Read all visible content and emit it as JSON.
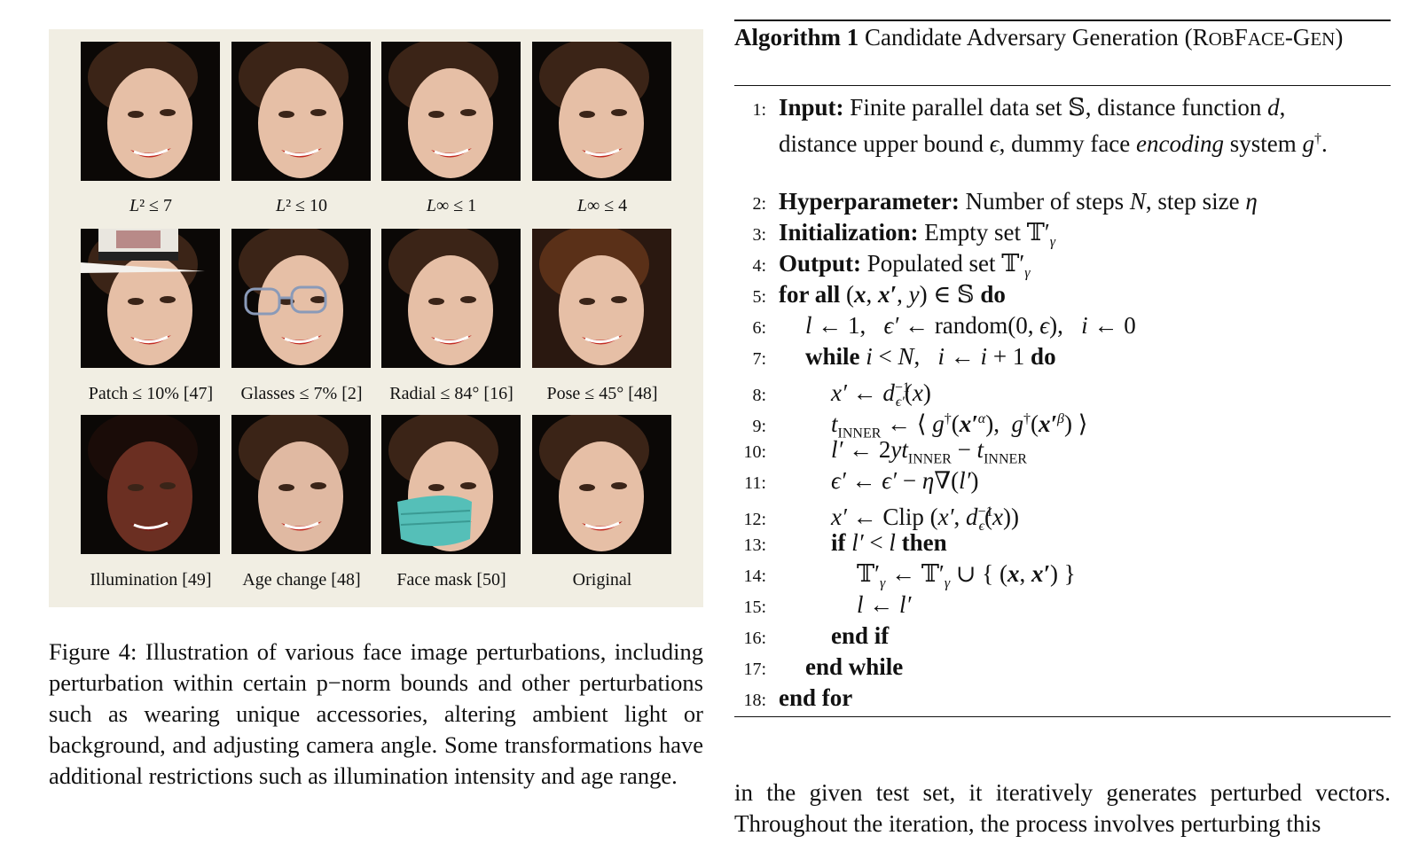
{
  "figure": {
    "cells": [
      {
        "label": "L² ≤ 7",
        "variant": "base"
      },
      {
        "label": "L² ≤ 10",
        "variant": "base"
      },
      {
        "label": "L∞ ≤ 1",
        "variant": "base"
      },
      {
        "label": "L∞ ≤ 4",
        "variant": "base"
      },
      {
        "label": "Patch ≤ 10% [47]",
        "variant": "hat"
      },
      {
        "label": "Glasses ≤ 7% [2]",
        "variant": "glasses"
      },
      {
        "label": "Radial ≤ 84° [16]",
        "variant": "base"
      },
      {
        "label": "Pose ≤ 45° [48]",
        "variant": "pose"
      },
      {
        "label": "Illumination [49]",
        "variant": "dark"
      },
      {
        "label": "Age change [48]",
        "variant": "age"
      },
      {
        "label": "Face mask [50]",
        "variant": "mask"
      },
      {
        "label": "Original",
        "variant": "base"
      }
    ],
    "caption": "Figure 4: Illustration of various face image perturbations, including perturbation within certain p−norm bounds and other perturbations such as wearing unique accessories, altering ambient light or background, and adjusting camera angle. Some transformations have additional restrictions such as illumination intensity and age range."
  },
  "algorithm": {
    "title_label": "Algorithm 1",
    "title_text": "Candidate Adversary Generation (RobFaceGen)",
    "lines": [
      {
        "n": "1:",
        "indent": 0,
        "kw": "Input:",
        "text": "Finite parallel data set 𝕊, distance function d, distance upper bound ϵ, dummy face encoding system g†."
      },
      {
        "n": "2:",
        "indent": 0,
        "kw": "Hyperparameter:",
        "text": "Number of steps N, step size η"
      },
      {
        "n": "3:",
        "indent": 0,
        "kw": "Initialization:",
        "text": "Empty set 𝕋′γ"
      },
      {
        "n": "4:",
        "indent": 0,
        "kw": "Output:",
        "text": "Populated set 𝕋′γ"
      },
      {
        "n": "5:",
        "indent": 0,
        "kw": "for all",
        "text": "(x, x′, y) ∈ 𝕊 do"
      },
      {
        "n": "6:",
        "indent": 1,
        "kw": "",
        "text": "l ← 1,   ϵ′ ← random(0, ϵ),   i ← 0"
      },
      {
        "n": "7:",
        "indent": 1,
        "kw": "while",
        "text": "i < N,   i ← i + 1 do"
      },
      {
        "n": "8:",
        "indent": 2,
        "kw": "",
        "text": "x′ ← d⁻¹ϵ′(x)"
      },
      {
        "n": "9:",
        "indent": 2,
        "kw": "",
        "text": "tINNER ← ⟨ g†(x′α), g†(x′β) ⟩"
      },
      {
        "n": "10:",
        "indent": 2,
        "kw": "",
        "text": "l′ ← 2ytINNER − tINNER"
      },
      {
        "n": "11:",
        "indent": 2,
        "kw": "",
        "text": "ϵ′ ← ϵ′ − η∇(l′)"
      },
      {
        "n": "12:",
        "indent": 2,
        "kw": "",
        "text": "x′ ← Clip(x′, d⁻¹ϵ(x))"
      },
      {
        "n": "13:",
        "indent": 2,
        "kw": "if",
        "text": "l′ < l then"
      },
      {
        "n": "14:",
        "indent": 3,
        "kw": "",
        "text": "𝕋′γ ← 𝕋′γ ∪ { (x, x′) }"
      },
      {
        "n": "15:",
        "indent": 3,
        "kw": "",
        "text": "l ← l′"
      },
      {
        "n": "16:",
        "indent": 2,
        "kw": "end if",
        "text": ""
      },
      {
        "n": "17:",
        "indent": 1,
        "kw": "end while",
        "text": ""
      },
      {
        "n": "18:",
        "indent": 0,
        "kw": "end for",
        "text": ""
      }
    ]
  },
  "body_text": "in the given test set, it iteratively generates perturbed vectors. Throughout the iteration, the process involves perturbing this"
}
